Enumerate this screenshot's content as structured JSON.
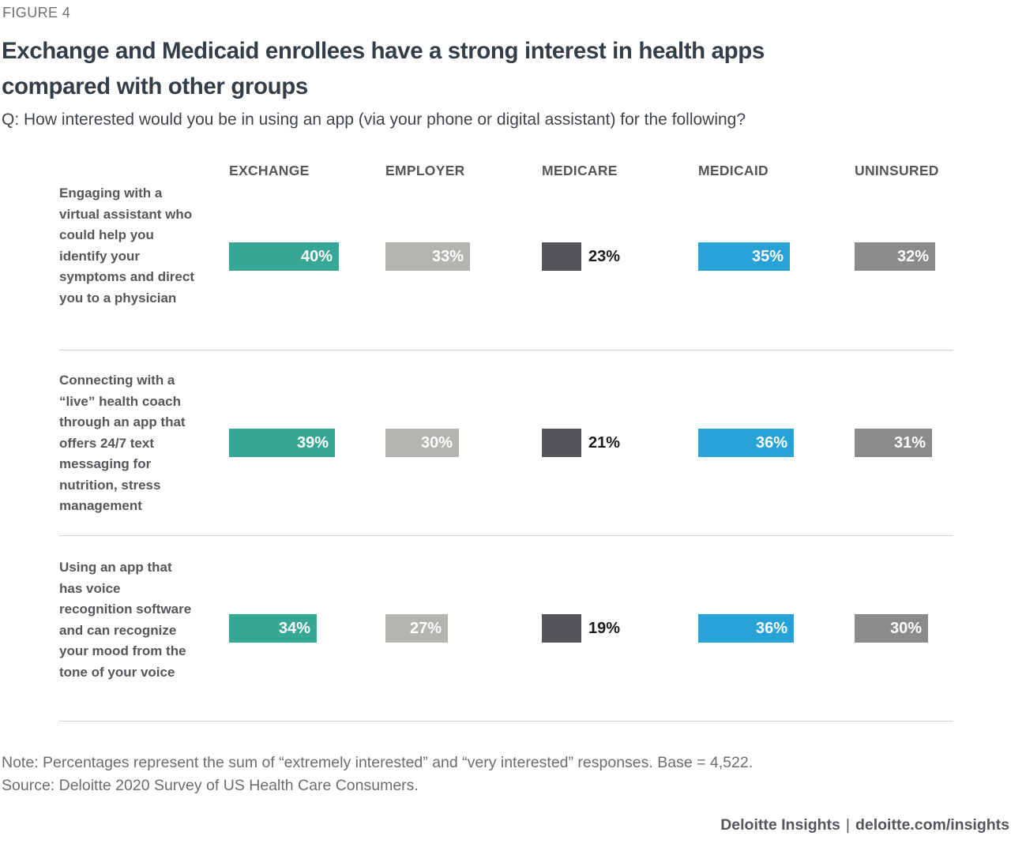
{
  "figure_label": "FIGURE 4",
  "title": "Exchange and Medicaid enrollees have a strong interest in health apps\ncompared with other groups",
  "subtitle": "Q: How interested would you be in using an app (via your phone or digital assistant) for the following?",
  "chart_data": {
    "type": "bar",
    "orientation": "horizontal",
    "unit": "%",
    "value_labels": "shown on every bar",
    "axis": "none (labeled bars only)",
    "legend_position": "column headers across top",
    "grid": false,
    "columns": [
      {
        "label": "EXCHANGE",
        "color": "#36A795",
        "value_text_color": "#ffffff",
        "value_label_position": "inside"
      },
      {
        "label": "EMPLOYER",
        "color": "#B3B3B0",
        "value_text_color": "#ffffff",
        "value_label_position": "inside"
      },
      {
        "label": "MEDICARE",
        "color": "#54565A",
        "value_text_color": "#1a1a1a",
        "value_label_position": "outside"
      },
      {
        "label": "MEDICAID",
        "color": "#29A2D8",
        "value_text_color": "#ffffff",
        "value_label_position": "inside"
      },
      {
        "label": "UNINSURED",
        "color": "#8B8B8B",
        "value_text_color": "#ffffff",
        "value_label_position": "inside"
      }
    ],
    "rows": [
      {
        "category": "Engaging with a virtual assistant who could help you identify your symptoms and direct you to a physician",
        "values": [
          40,
          33,
          23,
          35,
          32
        ]
      },
      {
        "category": "Connecting with a “live” health coach through an app that offers 24/7 text messaging for nutrition, stress management",
        "values": [
          39,
          30,
          21,
          36,
          31
        ]
      },
      {
        "category": "Using an app that has voice recognition software and can recognize your mood from the tone of your voice",
        "values": [
          34,
          27,
          19,
          36,
          30
        ]
      }
    ]
  },
  "note": "Note: Percentages represent the sum of “extremely interested” and “very interested” responses. Base = 4,522.",
  "source": "Source: Deloitte 2020 Survey of US Health Care Consumers.",
  "footer": {
    "brand": "Deloitte Insights",
    "separator": "|",
    "url": "deloitte.com/insights"
  }
}
